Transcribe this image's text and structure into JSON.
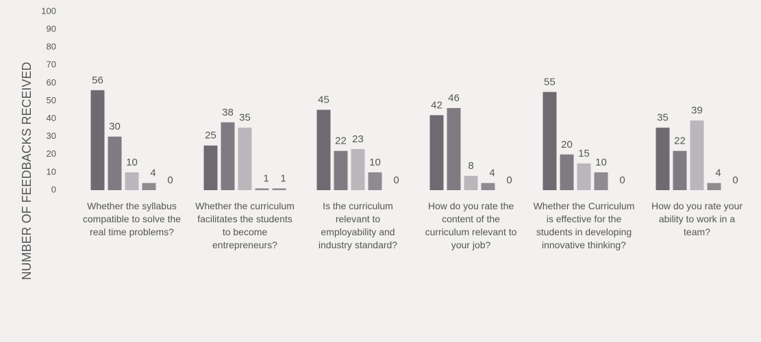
{
  "chart_data": {
    "type": "bar",
    "y_label": "NUMBER OF FEEDBACKS RECEIVED",
    "categories": [
      "Whether the syllabus compatible to solve the real time problems?",
      "Whether the curriculum facilitates the students to become entrepreneurs?",
      "Is the curriculum relevant to employability and industry standard?",
      "How do you rate the content of the curriculum relevant to your job?",
      "Whether the Curriculum is effective for the students in developing innovative thinking?",
      "How do you rate your ability to work in a team?"
    ],
    "series": [
      {
        "color": "#6e6a72",
        "values": [
          56,
          25,
          45,
          42,
          55,
          35
        ]
      },
      {
        "color": "#7f7b83",
        "values": [
          30,
          38,
          22,
          46,
          20,
          22
        ]
      },
      {
        "color": "#b9b7bb",
        "values": [
          10,
          35,
          23,
          8,
          15,
          39
        ]
      },
      {
        "color": "#8e8b91",
        "values": [
          4,
          1,
          10,
          4,
          10,
          4
        ]
      },
      {
        "color": "#8e8b91",
        "values": [
          0,
          1,
          0,
          0,
          0,
          0
        ]
      }
    ],
    "ylim": [
      0,
      100
    ],
    "yticks": [
      0,
      10,
      20,
      30,
      40,
      50,
      60,
      70,
      80,
      90,
      100
    ]
  }
}
